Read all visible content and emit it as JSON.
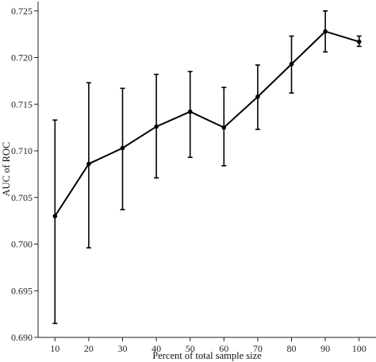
{
  "chart_data": {
    "type": "line",
    "title": "",
    "xlabel": "Percent of total sample size",
    "ylabel": "AUC of ROC",
    "xlim": [
      5,
      105
    ],
    "ylim": [
      0.69,
      0.726
    ],
    "x_ticks": [
      10,
      20,
      30,
      40,
      50,
      60,
      70,
      80,
      90,
      100
    ],
    "y_ticks": [
      0.69,
      0.695,
      0.7,
      0.705,
      0.71,
      0.715,
      0.72,
      0.725
    ],
    "y_tick_labels": [
      "0.690",
      "0.695",
      "0.700",
      "0.705",
      "0.710",
      "0.715",
      "0.720",
      "0.725"
    ],
    "grid": false,
    "legend": "none",
    "series": [
      {
        "x": [
          10,
          20,
          30,
          40,
          50,
          60,
          70,
          80,
          90,
          100
        ],
        "y": [
          0.703,
          0.7086,
          0.7103,
          0.7126,
          0.7142,
          0.7125,
          0.7158,
          0.7193,
          0.7228,
          0.7217
        ],
        "err_low": [
          0.6915,
          0.6996,
          0.7037,
          0.7071,
          0.7093,
          0.7084,
          0.7123,
          0.7162,
          0.7206,
          0.7212
        ],
        "err_high": [
          0.7133,
          0.7173,
          0.7167,
          0.7182,
          0.7185,
          0.7168,
          0.7192,
          0.7223,
          0.725,
          0.7223
        ]
      }
    ]
  }
}
